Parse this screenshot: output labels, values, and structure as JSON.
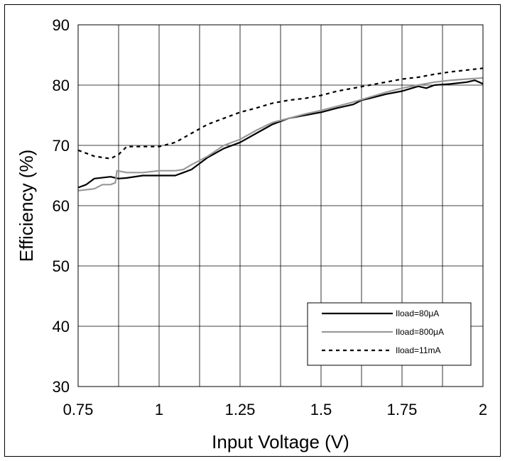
{
  "chart_data": {
    "type": "line",
    "title": "",
    "xlabel": "Input Voltage (V)",
    "ylabel": "Efficiency (%)",
    "xlim": [
      0.75,
      2
    ],
    "ylim": [
      30,
      90
    ],
    "xticks": [
      0.75,
      1,
      1.25,
      1.5,
      1.75,
      2
    ],
    "xtick_labels": [
      "0.75",
      "1",
      "1.25",
      "1.5",
      "1.75",
      "2"
    ],
    "yticks": [
      30,
      40,
      50,
      60,
      70,
      80,
      90
    ],
    "ytick_labels": [
      "30",
      "40",
      "50",
      "60",
      "70",
      "80",
      "90"
    ],
    "grid": true,
    "legend_position": "bottom-right",
    "series": [
      {
        "name": "Iload=80μA",
        "color": "#000000",
        "style": "solid",
        "x": [
          0.75,
          0.775,
          0.8,
          0.85,
          0.875,
          0.9,
          0.95,
          1.0,
          1.05,
          1.075,
          1.1,
          1.125,
          1.15,
          1.2,
          1.25,
          1.3,
          1.35,
          1.4,
          1.45,
          1.5,
          1.55,
          1.6,
          1.625,
          1.65,
          1.7,
          1.75,
          1.8,
          1.825,
          1.85,
          1.9,
          1.95,
          1.975,
          2.0
        ],
        "y": [
          63,
          63.5,
          64.5,
          64.8,
          64.5,
          64.6,
          65,
          65,
          65,
          65.5,
          66,
          67,
          68,
          69.5,
          70.5,
          72,
          73.5,
          74.5,
          75,
          75.5,
          76.2,
          76.8,
          77.5,
          77.8,
          78.5,
          79,
          79.8,
          79.5,
          80,
          80.2,
          80.5,
          80.8,
          80.2
        ]
      },
      {
        "name": "Iload=800μA",
        "color": "#999999",
        "style": "solid",
        "x": [
          0.75,
          0.8,
          0.825,
          0.85,
          0.865,
          0.87,
          0.9,
          0.95,
          1.0,
          1.05,
          1.075,
          1.1,
          1.125,
          1.15,
          1.2,
          1.25,
          1.3,
          1.35,
          1.4,
          1.45,
          1.5,
          1.55,
          1.6,
          1.65,
          1.7,
          1.75,
          1.8,
          1.85,
          1.9,
          1.95,
          2.0
        ],
        "y": [
          62.5,
          62.8,
          63.5,
          63.5,
          63.8,
          65.8,
          65.5,
          65.5,
          65.8,
          65.8,
          66,
          66.8,
          67.5,
          68.2,
          70,
          71,
          72.5,
          73.8,
          74.5,
          75.2,
          75.8,
          76.5,
          77.2,
          78,
          78.8,
          79.5,
          80,
          80.5,
          80.8,
          81,
          81.2
        ]
      },
      {
        "name": "Iload=11mA",
        "color": "#000000",
        "style": "dashed",
        "x": [
          0.75,
          0.8,
          0.85,
          0.875,
          0.9,
          1.0,
          1.05,
          1.1,
          1.15,
          1.2,
          1.25,
          1.3,
          1.35,
          1.4,
          1.45,
          1.5,
          1.55,
          1.6,
          1.65,
          1.7,
          1.75,
          1.8,
          1.85,
          1.875,
          1.9,
          1.95,
          2.0
        ],
        "y": [
          69.2,
          68.2,
          67.8,
          68.5,
          69.8,
          69.8,
          70.5,
          72,
          73.5,
          74.5,
          75.5,
          76.2,
          77,
          77.5,
          77.8,
          78.3,
          79,
          79.5,
          80,
          80.5,
          81,
          81.3,
          81.8,
          82,
          82.2,
          82.5,
          82.8
        ]
      }
    ]
  }
}
